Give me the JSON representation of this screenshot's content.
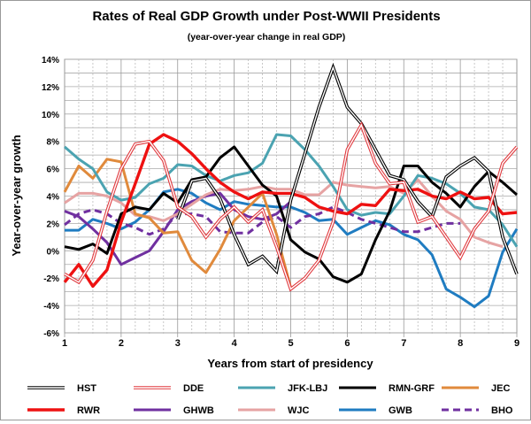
{
  "chart_data": {
    "type": "line",
    "title": "Rates of Real GDP Growth under Post-WWII Presidents",
    "subtitle": "(year-over-year change in real GDP)",
    "xlabel": "Years from start of presidency",
    "ylabel": "Year-over-year growth",
    "xlim": [
      1,
      9
    ],
    "ylim": [
      -6,
      14
    ],
    "x_ticks": [
      "1",
      "2",
      "3",
      "4",
      "5",
      "6",
      "7",
      "8",
      "9"
    ],
    "y_ticks": [
      "-6%",
      "-4%",
      "-2%",
      "0%",
      "2%",
      "4%",
      "6%",
      "8%",
      "10%",
      "12%",
      "14%"
    ],
    "x_step": 0.25,
    "grid": true,
    "legend_position": "bottom",
    "series": [
      {
        "name": "HST",
        "color": "#000000",
        "style": "double",
        "values": [
          null,
          null,
          null,
          null,
          null,
          null,
          null,
          null,
          2.3,
          5.1,
          5.3,
          3.8,
          1.2,
          -1.0,
          -0.4,
          -1.5,
          3.7,
          7.1,
          10.5,
          13.4,
          10.5,
          9.3,
          7.4,
          5.5,
          5.2,
          3.6,
          2.5,
          5.4,
          6.2,
          6.8,
          5.8,
          1.0,
          -1.7
        ]
      },
      {
        "name": "DDE",
        "color": "#e0393e",
        "style": "double",
        "values": [
          -1.7,
          -2.3,
          -0.7,
          2.9,
          6.0,
          7.8,
          8.0,
          6.6,
          3.2,
          2.5,
          1.0,
          2.3,
          3.2,
          2.1,
          3.0,
          0.3,
          -2.8,
          -2.0,
          -0.7,
          2.1,
          7.4,
          9.2,
          6.4,
          4.9,
          5.0,
          2.1,
          2.5,
          1.0,
          -0.5,
          1.6,
          2.9,
          6.4,
          7.6
        ]
      },
      {
        "name": "JFK-LBJ",
        "color": "#4ba3b1",
        "style": "solid",
        "values": [
          7.6,
          6.7,
          6.0,
          4.3,
          3.7,
          3.9,
          4.9,
          5.3,
          6.3,
          6.2,
          5.5,
          5.1,
          5.5,
          5.7,
          6.4,
          8.5,
          8.4,
          7.4,
          6.2,
          4.7,
          3.0,
          2.6,
          2.8,
          2.7,
          4.0,
          5.5,
          5.3,
          4.9,
          4.2,
          3.2,
          3.0,
          1.9,
          0.3
        ]
      },
      {
        "name": "RMN-GRF",
        "color": "#000000",
        "style": "solid",
        "values": [
          0.3,
          0.1,
          0.5,
          -0.2,
          2.7,
          3.2,
          3.0,
          4.2,
          3.5,
          5.2,
          5.4,
          6.8,
          7.6,
          6.2,
          4.8,
          4.0,
          0.8,
          -0.1,
          -0.6,
          -1.9,
          -2.3,
          -1.7,
          0.8,
          2.9,
          6.2,
          6.2,
          5.0,
          4.2,
          3.2,
          4.7,
          5.8,
          5.0,
          4.1
        ]
      },
      {
        "name": "JEC",
        "color": "#e08a3c",
        "style": "solid",
        "values": [
          4.3,
          6.2,
          5.3,
          6.7,
          6.5,
          2.7,
          2.4,
          1.3,
          1.4,
          -0.7,
          -1.6,
          0.1,
          2.2,
          3.2,
          4.2,
          1.2,
          -2.7
        ]
      },
      {
        "name": "RWR",
        "color": "#ee1111",
        "style": "thick",
        "values": [
          -2.3,
          -1.0,
          -2.6,
          -1.4,
          2.1,
          4.9,
          7.8,
          8.5,
          8.0,
          7.1,
          6.0,
          5.0,
          4.3,
          3.8,
          4.3,
          4.2,
          4.2,
          3.9,
          3.2,
          2.9,
          2.7,
          3.4,
          3.3,
          4.5,
          4.4,
          4.5,
          4.0,
          3.8,
          4.3,
          3.8,
          3.9,
          2.7,
          2.8
        ]
      },
      {
        "name": "GHWB",
        "color": "#7030a0",
        "style": "solid",
        "values": [
          2.9,
          2.5,
          1.6,
          0.6,
          -1.0,
          -0.5,
          0.0,
          1.4,
          3.0,
          3.6,
          4.0,
          4.2,
          3.0,
          2.5,
          2.3,
          2.7,
          3.6
        ]
      },
      {
        "name": "WJC",
        "color": "#e6a3a3",
        "style": "solid",
        "values": [
          3.5,
          4.2,
          4.2,
          4.0,
          3.5,
          2.6,
          2.5,
          2.2,
          2.7,
          3.4,
          4.1,
          4.5,
          4.4,
          4.5,
          4.7,
          4.5,
          4.5,
          4.1,
          4.1,
          5.0,
          4.8,
          4.7,
          4.6,
          4.7,
          4.2,
          5.2,
          4.0,
          2.9,
          2.3,
          1.0,
          0.6,
          0.3
        ]
      },
      {
        "name": "GWB",
        "color": "#1f7cc1",
        "style": "solid",
        "values": [
          1.5,
          1.5,
          2.3,
          2.0,
          1.6,
          2.1,
          3.0,
          4.3,
          4.5,
          4.2,
          3.5,
          3.0,
          3.6,
          3.4,
          3.3,
          3.2,
          3.2,
          2.8,
          2.2,
          2.3,
          1.2,
          1.7,
          2.2,
          1.9,
          1.2,
          0.8,
          -0.3,
          -2.8,
          -3.4,
          -4.1,
          -3.3,
          -0.1,
          1.6
        ]
      },
      {
        "name": "BHO",
        "color": "#7030a0",
        "style": "dashed",
        "values": [
          1.9,
          2.7,
          3.0,
          2.7,
          2.0,
          1.7,
          1.2,
          1.6,
          2.7,
          2.7,
          2.5,
          1.4,
          1.3,
          1.3,
          2.1,
          2.5,
          1.7,
          2.5,
          2.7,
          3.2,
          2.8,
          2.3,
          2.0,
          1.7,
          1.4,
          1.4,
          1.7,
          2.0,
          2.0
        ]
      }
    ]
  }
}
